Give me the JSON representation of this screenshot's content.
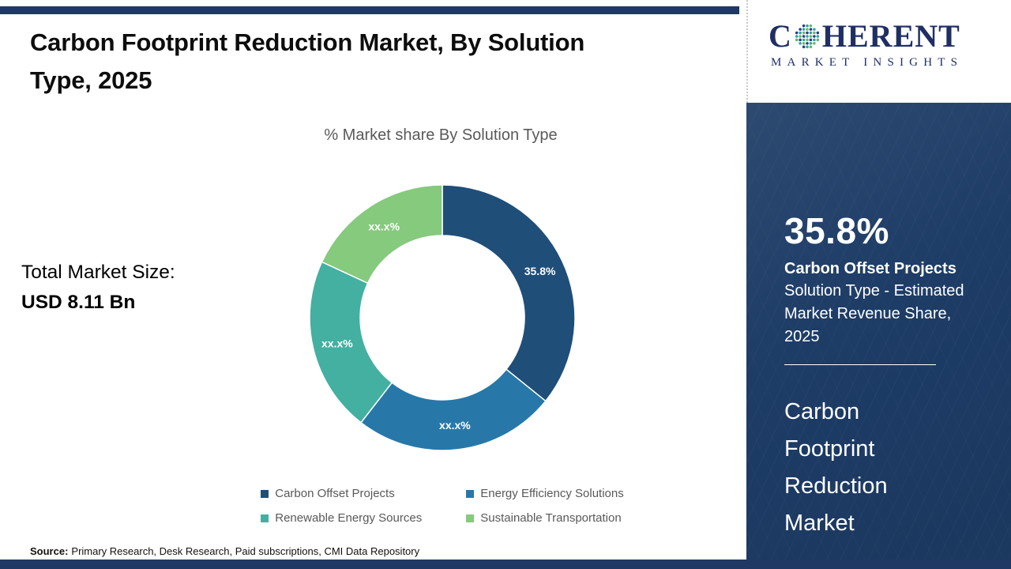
{
  "header": {
    "title_line1": "Carbon Footprint Reduction Market, By Solution",
    "title_line2": "Type, 2025"
  },
  "total_market": {
    "label": "Total Market Size:",
    "value": "USD 8.11 Bn"
  },
  "chart_data": {
    "type": "pie",
    "subtype": "donut",
    "title": "% Market share By Solution Type",
    "categories": [
      "Carbon Offset Projects",
      "Energy Efficiency Solutions",
      "Renewable Energy Sources",
      "Sustainable Transportation"
    ],
    "values": [
      35.8,
      24.7,
      21.4,
      18.1
    ],
    "values_estimated_from_arcs": [
      false,
      true,
      true,
      true
    ],
    "slice_labels": [
      "35.8%",
      "xx.x%",
      "xx.x%",
      "xx.x%"
    ],
    "colors": [
      "#1f4e79",
      "#2778a9",
      "#43b0a1",
      "#85ca7d"
    ],
    "start_angle_deg": 0,
    "direction": "clockwise",
    "inner_radius_ratio": 0.62,
    "legend_position": "bottom"
  },
  "source": {
    "label": "Source:",
    "text": "Primary Research, Desk Research, Paid subscriptions, CMI Data Repository"
  },
  "logo": {
    "text_c": "C",
    "text_rest": "HERENT",
    "subtitle": "MARKET INSIGHTS",
    "dot_colors": [
      "#2ba7a5",
      "#63b868",
      "#26407f"
    ],
    "text_color": "#1f2f63"
  },
  "panel": {
    "stat_value": "35.8%",
    "stat_title": "Carbon Offset Projects",
    "stat_desc": "Solution Type - Estimated Market Revenue Share, 2025",
    "market_name": "Carbon Footprint Reduction Market",
    "background": "#1d3c66"
  },
  "accent": {
    "bar_color": "#1f3864"
  }
}
